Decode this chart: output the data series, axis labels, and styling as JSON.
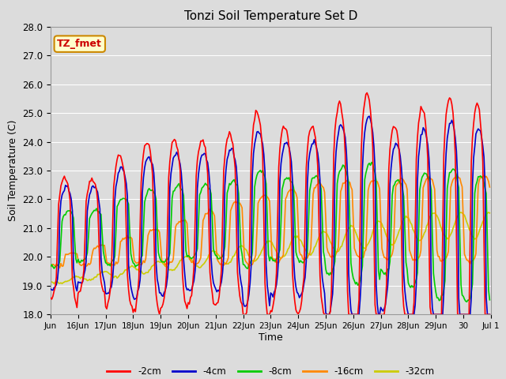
{
  "title": "Tonzi Soil Temperature Set D",
  "xlabel": "Time",
  "ylabel": "Soil Temperature (C)",
  "ylim": [
    18.0,
    28.0
  ],
  "yticks": [
    18.0,
    19.0,
    20.0,
    21.0,
    22.0,
    23.0,
    24.0,
    25.0,
    26.0,
    27.0,
    28.0
  ],
  "xtick_labels": [
    "Jun",
    "16Jun",
    "17Jun",
    "18Jun",
    "19Jun",
    "20Jun",
    "21Jun",
    "22Jun",
    "23Jun",
    "24Jun",
    "25Jun",
    "26Jun",
    "27Jun",
    "28Jun",
    "29Jun",
    "30",
    "Jul 1"
  ],
  "series_colors": {
    "-2cm": "#FF0000",
    "-4cm": "#0000CC",
    "-8cm": "#00CC00",
    "-16cm": "#FF8800",
    "-32cm": "#CCCC00"
  },
  "legend_labels": [
    "-2cm",
    "-4cm",
    "-8cm",
    "-16cm",
    "-32cm"
  ],
  "legend_colors": [
    "#FF0000",
    "#0000CC",
    "#00CC00",
    "#FF8800",
    "#CCCC00"
  ],
  "annotation_text": "TZ_fmet",
  "annotation_color": "#CC0000",
  "annotation_bg": "#FFFFCC",
  "annotation_border": "#CC8800",
  "bg_color": "#DCDCDC",
  "grid_color": "#FFFFFF",
  "linewidth": 1.2
}
